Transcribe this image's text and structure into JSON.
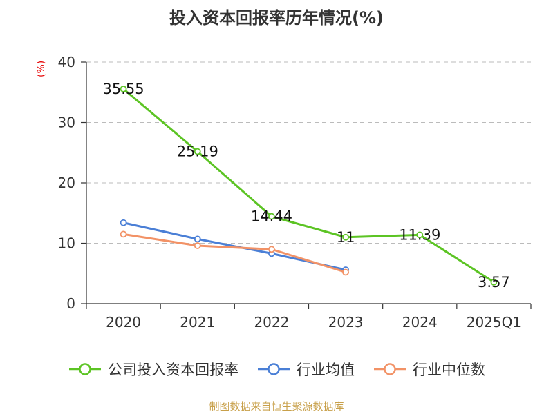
{
  "title": "投入资本回报率历年情况(%)",
  "unit_label": "(%)",
  "source_text": "制图数据来自恒生聚源数据库",
  "colors": {
    "company": "#5cc424",
    "industry_avg": "#4a7fd6",
    "industry_median": "#f29266",
    "axis": "#333333",
    "grid": "#bbbbbb",
    "unit": "#e60000"
  },
  "chart_data": {
    "type": "line",
    "title": "投入资本回报率历年情况(%)",
    "xlabel": "",
    "ylabel": "(%)",
    "categories": [
      "2020",
      "2021",
      "2022",
      "2023",
      "2024",
      "2025Q1"
    ],
    "ylim": [
      0,
      40
    ],
    "yticks": [
      0,
      10,
      20,
      30,
      40
    ],
    "grid": true,
    "legend_position": "bottom",
    "series": [
      {
        "name": "公司投入资本回报率",
        "key": "company",
        "values": [
          35.55,
          25.19,
          14.44,
          11,
          11.39,
          3.57
        ],
        "value_labels": [
          "35.55",
          "25.19",
          "14.44",
          "11",
          "11.39",
          "3.57"
        ],
        "show_labels": true
      },
      {
        "name": "行业均值",
        "key": "industry_avg",
        "values": [
          13.4,
          10.7,
          8.3,
          5.6,
          null,
          null
        ],
        "show_labels": false
      },
      {
        "name": "行业中位数",
        "key": "industry_median",
        "values": [
          11.5,
          9.6,
          9.0,
          5.2,
          null,
          null
        ],
        "show_labels": false
      }
    ]
  }
}
